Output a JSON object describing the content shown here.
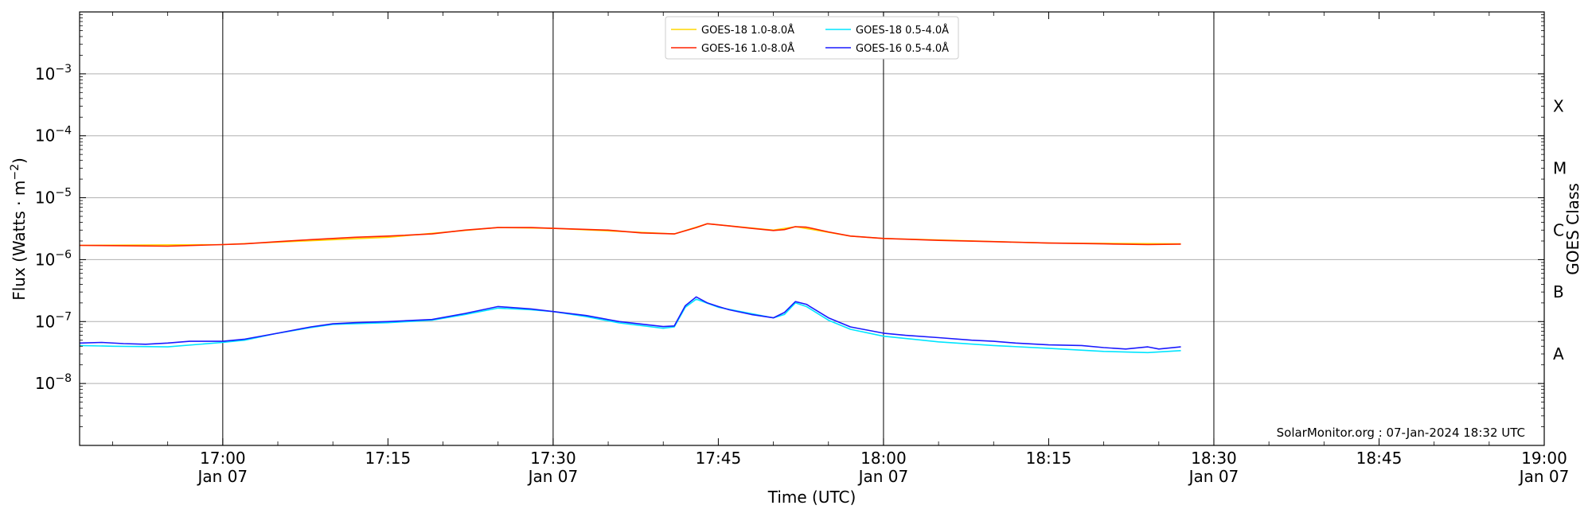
{
  "chart_data": {
    "type": "line",
    "title": "",
    "xlabel": "Time (UTC)",
    "ylabel_main": "Flux (Watts · m",
    "ylabel_sup": "−2",
    "ylabel_close": ")",
    "ylabel_right": "GOES Class",
    "x_range": [
      "16:47",
      "19:00"
    ],
    "y_range": [
      1e-09,
      0.01
    ],
    "y_scale": "log",
    "y_ticks": [
      {
        "value": 1e-08,
        "base": "10",
        "exp": "−8"
      },
      {
        "value": 1e-07,
        "base": "10",
        "exp": "−7"
      },
      {
        "value": 1e-06,
        "base": "10",
        "exp": "−6"
      },
      {
        "value": 1e-05,
        "base": "10",
        "exp": "−5"
      },
      {
        "value": 0.0001,
        "base": "10",
        "exp": "−4"
      },
      {
        "value": 0.001,
        "base": "10",
        "exp": "−3"
      }
    ],
    "x_ticks": [
      {
        "t": "17:00",
        "label": "17:00",
        "sub": "Jan 07",
        "vline": true
      },
      {
        "t": "17:15",
        "label": "17:15",
        "sub": "",
        "vline": false
      },
      {
        "t": "17:30",
        "label": "17:30",
        "sub": "Jan 07",
        "vline": true
      },
      {
        "t": "17:45",
        "label": "17:45",
        "sub": "",
        "vline": false
      },
      {
        "t": "18:00",
        "label": "18:00",
        "sub": "Jan 07",
        "vline": true
      },
      {
        "t": "18:15",
        "label": "18:15",
        "sub": "",
        "vline": false
      },
      {
        "t": "18:30",
        "label": "18:30",
        "sub": "Jan 07",
        "vline": true
      },
      {
        "t": "18:45",
        "label": "18:45",
        "sub": "",
        "vline": false
      },
      {
        "t": "19:00",
        "label": "19:00",
        "sub": "Jan 07",
        "vline": false
      }
    ],
    "class_labels": [
      {
        "label": "X",
        "value": 0.0003
      },
      {
        "label": "M",
        "value": 3e-05
      },
      {
        "label": "C",
        "value": 3e-06
      },
      {
        "label": "B",
        "value": 3e-07
      },
      {
        "label": "A",
        "value": 3e-08
      }
    ],
    "grid": "horizontal at decades",
    "legend_position": "top-center",
    "credit": "SolarMonitor.org : 07-Jan-2024 18:32 UTC",
    "series": [
      {
        "name": "GOES-18 1.0-8.0Å",
        "color": "#ffd700",
        "data": [
          [
            "16:47",
            1.7e-06
          ],
          [
            "17:00",
            1.75e-06
          ],
          [
            "17:15",
            2.3e-06
          ],
          [
            "17:25",
            3.3e-06
          ],
          [
            "17:30",
            3.2e-06
          ],
          [
            "17:41",
            2.6e-06
          ],
          [
            "17:44",
            3.8e-06
          ],
          [
            "17:50",
            3e-06
          ],
          [
            "17:52",
            3.4e-06
          ],
          [
            "17:57",
            2.4e-06
          ],
          [
            "18:00",
            2.2e-06
          ],
          [
            "18:15",
            1.85e-06
          ],
          [
            "18:27",
            1.8e-06
          ]
        ]
      },
      {
        "name": "GOES-16 1.0-8.0Å",
        "color": "#ff2200",
        "data": [
          [
            "16:47",
            1.7e-06
          ],
          [
            "16:51",
            1.68e-06
          ],
          [
            "16:55",
            1.65e-06
          ],
          [
            "17:00",
            1.75e-06
          ],
          [
            "17:02",
            1.8e-06
          ],
          [
            "17:05",
            1.95e-06
          ],
          [
            "17:08",
            2.1e-06
          ],
          [
            "17:12",
            2.3e-06
          ],
          [
            "17:15",
            2.4e-06
          ],
          [
            "17:19",
            2.6e-06
          ],
          [
            "17:22",
            3e-06
          ],
          [
            "17:25",
            3.3e-06
          ],
          [
            "17:28",
            3.3e-06
          ],
          [
            "17:30",
            3.2e-06
          ],
          [
            "17:35",
            3e-06
          ],
          [
            "17:38",
            2.7e-06
          ],
          [
            "17:41",
            2.6e-06
          ],
          [
            "17:43",
            3.3e-06
          ],
          [
            "17:44",
            3.8e-06
          ],
          [
            "17:46",
            3.5e-06
          ],
          [
            "17:48",
            3.2e-06
          ],
          [
            "17:50",
            2.95e-06
          ],
          [
            "17:51",
            3.05e-06
          ],
          [
            "17:52",
            3.4e-06
          ],
          [
            "17:53",
            3.35e-06
          ],
          [
            "17:55",
            2.8e-06
          ],
          [
            "17:57",
            2.4e-06
          ],
          [
            "18:00",
            2.2e-06
          ],
          [
            "18:05",
            2.05e-06
          ],
          [
            "18:10",
            1.95e-06
          ],
          [
            "18:15",
            1.85e-06
          ],
          [
            "18:20",
            1.8e-06
          ],
          [
            "18:24",
            1.75e-06
          ],
          [
            "18:27",
            1.78e-06
          ]
        ]
      },
      {
        "name": "GOES-18 0.5-4.0Å",
        "color": "#00e5ff",
        "data": [
          [
            "16:47",
            4.1e-08
          ],
          [
            "16:50",
            4e-08
          ],
          [
            "16:55",
            3.9e-08
          ],
          [
            "17:00",
            4.6e-08
          ],
          [
            "17:02",
            5e-08
          ],
          [
            "17:05",
            6.5e-08
          ],
          [
            "17:08",
            8e-08
          ],
          [
            "17:10",
            9e-08
          ],
          [
            "17:15",
            9.6e-08
          ],
          [
            "17:19",
            1.05e-07
          ],
          [
            "17:22",
            1.3e-07
          ],
          [
            "17:25",
            1.65e-07
          ],
          [
            "17:28",
            1.55e-07
          ],
          [
            "17:30",
            1.45e-07
          ],
          [
            "17:33",
            1.2e-07
          ],
          [
            "17:36",
            9.5e-08
          ],
          [
            "17:40",
            7.8e-08
          ],
          [
            "17:41",
            8.2e-08
          ],
          [
            "17:42",
            1.7e-07
          ],
          [
            "17:43",
            2.3e-07
          ],
          [
            "17:45",
            1.7e-07
          ],
          [
            "17:47",
            1.45e-07
          ],
          [
            "17:50",
            1.15e-07
          ],
          [
            "17:51",
            1.3e-07
          ],
          [
            "17:52",
            2e-07
          ],
          [
            "17:53",
            1.75e-07
          ],
          [
            "17:55",
            1.05e-07
          ],
          [
            "17:57",
            7.5e-08
          ],
          [
            "18:00",
            5.8e-08
          ],
          [
            "18:05",
            4.7e-08
          ],
          [
            "18:10",
            4.1e-08
          ],
          [
            "18:15",
            3.7e-08
          ],
          [
            "18:20",
            3.3e-08
          ],
          [
            "18:24",
            3.15e-08
          ],
          [
            "18:27",
            3.4e-08
          ]
        ]
      },
      {
        "name": "GOES-16 0.5-4.0Å",
        "color": "#1a1aff",
        "data": [
          [
            "16:47",
            4.5e-08
          ],
          [
            "16:49",
            4.6e-08
          ],
          [
            "16:51",
            4.4e-08
          ],
          [
            "16:53",
            4.3e-08
          ],
          [
            "16:55",
            4.5e-08
          ],
          [
            "16:57",
            4.8e-08
          ],
          [
            "17:00",
            4.8e-08
          ],
          [
            "17:02",
            5.2e-08
          ],
          [
            "17:05",
            6.5e-08
          ],
          [
            "17:08",
            8.2e-08
          ],
          [
            "17:10",
            9.2e-08
          ],
          [
            "17:12",
            9.6e-08
          ],
          [
            "17:15",
            1e-07
          ],
          [
            "17:19",
            1.08e-07
          ],
          [
            "17:22",
            1.35e-07
          ],
          [
            "17:25",
            1.75e-07
          ],
          [
            "17:28",
            1.6e-07
          ],
          [
            "17:30",
            1.45e-07
          ],
          [
            "17:33",
            1.25e-07
          ],
          [
            "17:36",
            1e-07
          ],
          [
            "17:40",
            8.3e-08
          ],
          [
            "17:41",
            8.5e-08
          ],
          [
            "17:42",
            1.8e-07
          ],
          [
            "17:43",
            2.5e-07
          ],
          [
            "17:44",
            2e-07
          ],
          [
            "17:45",
            1.75e-07
          ],
          [
            "17:46",
            1.55e-07
          ],
          [
            "17:48",
            1.3e-07
          ],
          [
            "17:50",
            1.15e-07
          ],
          [
            "17:51",
            1.4e-07
          ],
          [
            "17:52",
            2.1e-07
          ],
          [
            "17:53",
            1.9e-07
          ],
          [
            "17:55",
            1.15e-07
          ],
          [
            "17:57",
            8.2e-08
          ],
          [
            "18:00",
            6.5e-08
          ],
          [
            "18:02",
            6e-08
          ],
          [
            "18:05",
            5.5e-08
          ],
          [
            "18:08",
            5e-08
          ],
          [
            "18:10",
            4.8e-08
          ],
          [
            "18:12",
            4.5e-08
          ],
          [
            "18:15",
            4.2e-08
          ],
          [
            "18:18",
            4.1e-08
          ],
          [
            "18:20",
            3.8e-08
          ],
          [
            "18:22",
            3.6e-08
          ],
          [
            "18:24",
            3.9e-08
          ],
          [
            "18:25",
            3.6e-08
          ],
          [
            "18:27",
            3.9e-08
          ]
        ]
      }
    ]
  }
}
